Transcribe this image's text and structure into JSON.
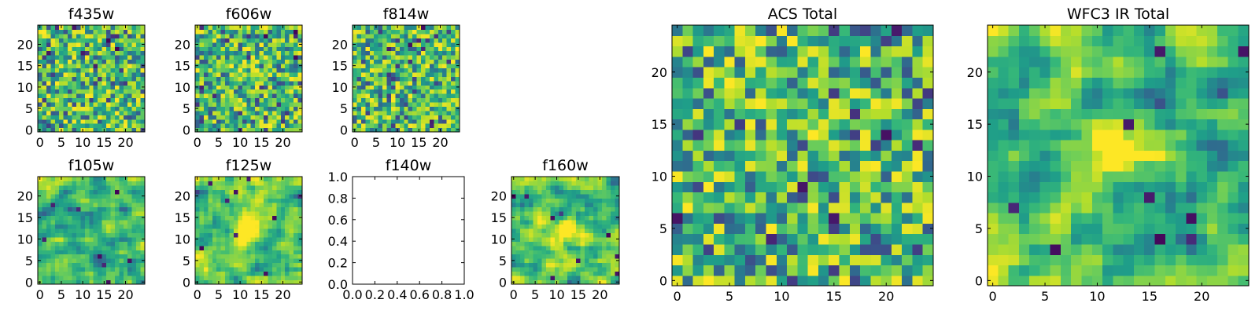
{
  "chart_data": [
    {
      "type": "heatmap",
      "title": "f435w",
      "colormap": "viridis",
      "texture": "noise",
      "blob": false,
      "xlim": [
        -0.5,
        24.5
      ],
      "ylim": [
        -0.5,
        24.5
      ],
      "xticks": [
        0,
        5,
        10,
        15,
        20
      ],
      "yticks": [
        0,
        5,
        10,
        15,
        20
      ]
    },
    {
      "type": "heatmap",
      "title": "f606w",
      "colormap": "viridis",
      "texture": "noise",
      "blob": false,
      "xlim": [
        -0.5,
        24.5
      ],
      "ylim": [
        -0.5,
        24.5
      ],
      "xticks": [
        0,
        5,
        10,
        15,
        20
      ],
      "yticks": [
        0,
        5,
        10,
        15,
        20
      ]
    },
    {
      "type": "heatmap",
      "title": "f814w",
      "colormap": "viridis",
      "texture": "noise",
      "blob": false,
      "xlim": [
        -0.5,
        24.5
      ],
      "ylim": [
        -0.5,
        24.5
      ],
      "xticks": [
        0,
        5,
        10,
        15,
        20
      ],
      "yticks": [
        0,
        5,
        10,
        15,
        20
      ]
    },
    {
      "type": "heatmap",
      "title": "f105w",
      "colormap": "viridis",
      "texture": "smooth",
      "blob": false,
      "xlim": [
        -0.5,
        24.5
      ],
      "ylim": [
        -0.5,
        24.5
      ],
      "xticks": [
        0,
        5,
        10,
        15,
        20
      ],
      "yticks": [
        0,
        5,
        10,
        15,
        20
      ]
    },
    {
      "type": "heatmap",
      "title": "f125w",
      "colormap": "viridis",
      "texture": "smooth",
      "blob": true,
      "xlim": [
        -0.5,
        24.5
      ],
      "ylim": [
        -0.5,
        24.5
      ],
      "xticks": [
        0,
        5,
        10,
        15,
        20
      ],
      "yticks": [
        0,
        5,
        10,
        15,
        20
      ]
    },
    {
      "type": "empty",
      "title": "f140w",
      "xlim": [
        0,
        1
      ],
      "ylim": [
        0,
        1
      ],
      "xticks": [
        0.0,
        0.2,
        0.4,
        0.6,
        0.8,
        1.0
      ],
      "yticks": [
        0.0,
        0.2,
        0.4,
        0.6,
        0.8,
        1.0
      ],
      "xticklabels": [
        "0.0",
        "0.2",
        "0.4",
        "0.6",
        "0.8",
        "1.0"
      ],
      "yticklabels": [
        "0.0",
        "0.2",
        "0.4",
        "0.6",
        "0.8",
        "1.0"
      ]
    },
    {
      "type": "heatmap",
      "title": "f160w",
      "colormap": "viridis",
      "texture": "smooth",
      "blob": true,
      "xlim": [
        -0.5,
        24.5
      ],
      "ylim": [
        -0.5,
        24.5
      ],
      "xticks": [
        0,
        5,
        10,
        15,
        20
      ],
      "yticks": [
        0,
        5,
        10,
        15,
        20
      ]
    },
    {
      "type": "heatmap",
      "title": "ACS Total",
      "colormap": "viridis",
      "texture": "noise",
      "blob": false,
      "xlim": [
        -0.5,
        24.5
      ],
      "ylim": [
        -0.5,
        24.5
      ],
      "xticks": [
        0,
        5,
        10,
        15,
        20
      ],
      "yticks": [
        0,
        5,
        10,
        15,
        20
      ]
    },
    {
      "type": "heatmap",
      "title": "WFC3 IR Total",
      "colormap": "viridis",
      "texture": "smooth",
      "blob": true,
      "xlim": [
        -0.5,
        24.5
      ],
      "ylim": [
        -0.5,
        24.5
      ],
      "xticks": [
        0,
        5,
        10,
        15,
        20
      ],
      "yticks": [
        0,
        5,
        10,
        15,
        20
      ]
    }
  ]
}
